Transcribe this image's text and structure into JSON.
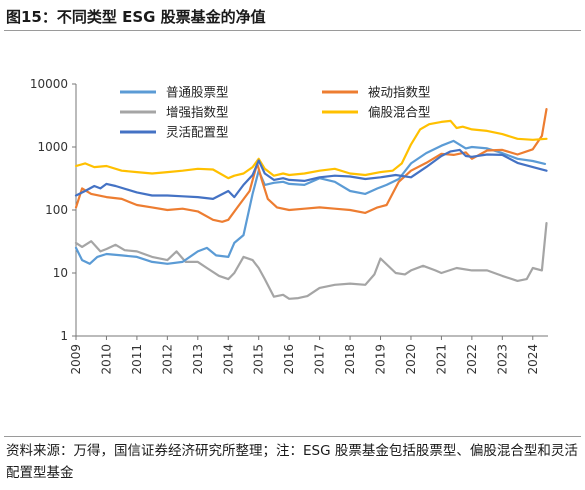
{
  "title": "图15：不同类型 ESG 股票基金的净值",
  "note": "资料来源：万得，国信证券经济研究所整理；注：ESG 股票基金包括股票型、偏股混合型和灵活配置型基金",
  "chart_data": {
    "type": "line",
    "title": "",
    "xlabel": "",
    "ylabel": "",
    "yscale": "log",
    "ylim": [
      1,
      10000
    ],
    "xlim": [
      2009,
      2024.5
    ],
    "y_ticks": [
      "1",
      "10",
      "100",
      "1000",
      "10000"
    ],
    "x_ticks": [
      "2009",
      "2010",
      "2011",
      "2012",
      "2013",
      "2014",
      "2015",
      "2016",
      "2017",
      "2018",
      "2019",
      "2020",
      "2021",
      "2022",
      "2023",
      "2024"
    ],
    "grid": false,
    "legend_position": "top",
    "series": [
      {
        "name": "普通股票型",
        "color": "#5b9bd5",
        "x": [
          2009.0,
          2009.2,
          2009.45,
          2009.7,
          2010.0,
          2010.5,
          2011.0,
          2011.5,
          2012.0,
          2012.5,
          2013.0,
          2013.3,
          2013.6,
          2014.0,
          2014.2,
          2014.5,
          2014.8,
          2015.0,
          2015.2,
          2015.5,
          2015.8,
          2016.0,
          2016.5,
          2017.0,
          2017.5,
          2018.0,
          2018.5,
          2018.9,
          2019.2,
          2019.6,
          2020.0,
          2020.5,
          2021.0,
          2021.4,
          2021.8,
          2022.0,
          2022.5,
          2023.0,
          2023.5,
          2024.0,
          2024.4
        ],
        "y": [
          25,
          16,
          14,
          18,
          20,
          19,
          18,
          15,
          14,
          15,
          22,
          25,
          19,
          18,
          30,
          40,
          180,
          420,
          250,
          270,
          280,
          260,
          250,
          320,
          280,
          200,
          180,
          220,
          250,
          310,
          550,
          800,
          1050,
          1250,
          950,
          1000,
          950,
          800,
          650,
          600,
          540
        ]
      },
      {
        "name": "被动指数型",
        "color": "#ed7d31",
        "x": [
          2009.0,
          2009.2,
          2009.5,
          2010.0,
          2010.5,
          2011.0,
          2011.5,
          2012.0,
          2012.5,
          2013.0,
          2013.5,
          2013.8,
          2014.0,
          2014.3,
          2014.7,
          2014.95,
          2015.1,
          2015.3,
          2015.6,
          2016.0,
          2016.5,
          2017.0,
          2017.5,
          2018.0,
          2018.5,
          2018.9,
          2019.2,
          2019.6,
          2020.0,
          2020.5,
          2021.0,
          2021.4,
          2021.8,
          2022.0,
          2022.5,
          2023.0,
          2023.5,
          2024.0,
          2024.3,
          2024.45
        ],
        "y": [
          110,
          220,
          180,
          160,
          150,
          120,
          110,
          100,
          105,
          95,
          70,
          65,
          70,
          110,
          200,
          550,
          300,
          150,
          110,
          100,
          105,
          110,
          105,
          100,
          90,
          110,
          120,
          280,
          420,
          560,
          780,
          750,
          820,
          650,
          880,
          900,
          760,
          920,
          1500,
          4000
        ]
      },
      {
        "name": "增强指数型",
        "color": "#a5a5a5",
        "x": [
          2009.0,
          2009.2,
          2009.5,
          2009.8,
          2010.0,
          2010.3,
          2010.6,
          2011.0,
          2011.5,
          2012.0,
          2012.3,
          2012.6,
          2013.0,
          2013.3,
          2013.7,
          2014.0,
          2014.2,
          2014.5,
          2014.8,
          2015.0,
          2015.2,
          2015.5,
          2015.8,
          2016.0,
          2016.3,
          2016.6,
          2017.0,
          2017.5,
          2018.0,
          2018.5,
          2018.8,
          2019.0,
          2019.5,
          2019.8,
          2020.0,
          2020.4,
          2020.8,
          2021.0,
          2021.5,
          2022.0,
          2022.5,
          2023.0,
          2023.5,
          2023.8,
          2024.0,
          2024.3,
          2024.45
        ],
        "y": [
          30,
          26,
          32,
          22,
          24,
          28,
          23,
          22,
          18,
          16,
          22,
          15,
          15,
          12,
          9,
          8,
          10,
          18,
          16,
          12,
          8,
          4.2,
          4.5,
          3.9,
          4.0,
          4.3,
          5.8,
          6.5,
          6.8,
          6.5,
          9.5,
          17,
          10,
          9.5,
          11,
          13,
          11,
          10,
          12,
          11,
          11,
          9,
          7.5,
          8,
          12,
          11,
          62
        ]
      },
      {
        "name": "偏股混合型",
        "color": "#ffc000",
        "x": [
          2009.0,
          2009.3,
          2009.6,
          2010.0,
          2010.5,
          2011.0,
          2011.5,
          2012.0,
          2012.5,
          2013.0,
          2013.5,
          2014.0,
          2014.2,
          2014.5,
          2014.8,
          2015.0,
          2015.2,
          2015.5,
          2015.8,
          2016.0,
          2016.5,
          2017.0,
          2017.5,
          2018.0,
          2018.5,
          2019.0,
          2019.4,
          2019.7,
          2020.0,
          2020.3,
          2020.6,
          2021.0,
          2021.3,
          2021.5,
          2021.7,
          2022.0,
          2022.5,
          2023.0,
          2023.5,
          2024.0,
          2024.45
        ],
        "y": [
          500,
          550,
          480,
          500,
          420,
          400,
          380,
          400,
          420,
          450,
          440,
          320,
          350,
          380,
          480,
          650,
          450,
          350,
          380,
          360,
          380,
          420,
          450,
          380,
          360,
          400,
          420,
          550,
          1100,
          1900,
          2300,
          2500,
          2600,
          2000,
          2100,
          1900,
          1800,
          1600,
          1350,
          1300,
          1350
        ]
      },
      {
        "name": "灵活配置型",
        "color": "#4472c4",
        "x": [
          2009.0,
          2009.3,
          2009.6,
          2009.8,
          2010.0,
          2010.3,
          2010.7,
          2011.0,
          2011.5,
          2012.0,
          2012.5,
          2013.0,
          2013.5,
          2014.0,
          2014.2,
          2014.5,
          2014.8,
          2015.0,
          2015.2,
          2015.5,
          2015.8,
          2016.0,
          2016.5,
          2017.0,
          2017.5,
          2018.0,
          2018.5,
          2019.0,
          2019.5,
          2020.0,
          2020.5,
          2021.0,
          2021.3,
          2021.6,
          2021.8,
          2022.0,
          2022.5,
          2023.0,
          2023.5,
          2024.0,
          2024.45
        ],
        "y": [
          170,
          200,
          240,
          220,
          260,
          240,
          210,
          190,
          170,
          170,
          165,
          160,
          150,
          200,
          160,
          250,
          360,
          610,
          380,
          300,
          320,
          300,
          290,
          330,
          350,
          340,
          310,
          330,
          360,
          330,
          480,
          720,
          850,
          900,
          720,
          700,
          760,
          750,
          560,
          480,
          420
        ]
      }
    ]
  }
}
